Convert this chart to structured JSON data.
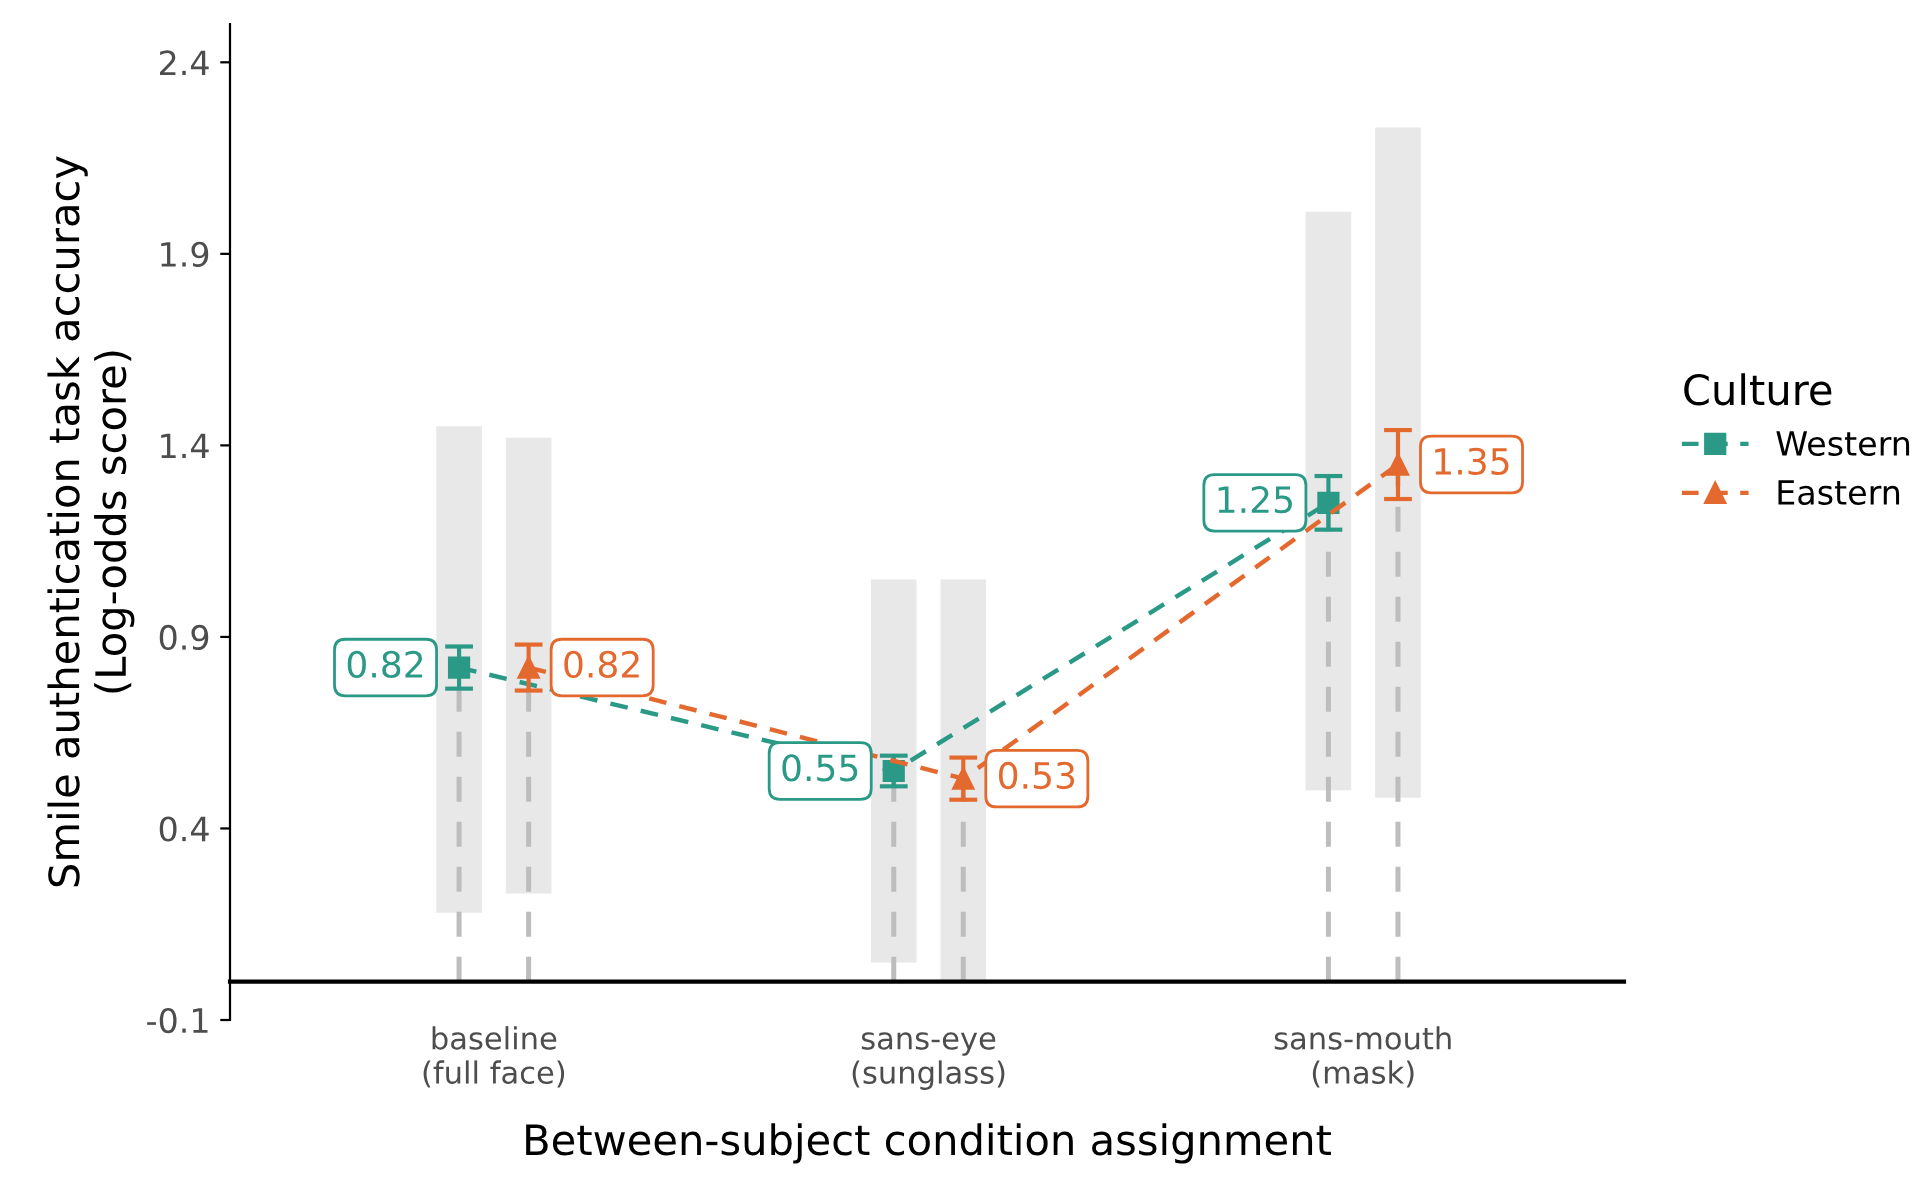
{
  "chart_data": {
    "type": "lollipop",
    "xlabel": "Between-subject condition assignment",
    "ylabel": "Smile authentication task accuracy\n(Log-odds score)",
    "legend_title": "Culture",
    "categories": [
      "baseline\n(full face)",
      "sans-eye\n(sunglass)",
      "sans-mouth\n(mask)"
    ],
    "ylim": [
      -0.1,
      2.5
    ],
    "yticks": [
      -0.1,
      0.4,
      0.9,
      1.4,
      1.9,
      2.4
    ],
    "grid": false,
    "legend": "right",
    "series": [
      {
        "type": "bar",
        "color": "#e8e8e8",
        "base": [
          0.18,
          0.05,
          0.5
        ],
        "values": [
          1.27,
          1.0,
          1.51
        ]
      },
      {
        "type": "bar",
        "color": "#e8e8e8",
        "base": [
          0.23,
          0.0,
          0.48
        ],
        "values": [
          1.19,
          1.05,
          1.75
        ]
      },
      {
        "name": "Western",
        "color": "#2a9a87",
        "line_style": "dashed",
        "marker": "square",
        "values": [
          0.82,
          0.55,
          1.25
        ],
        "errors": [
          0.055,
          0.04,
          0.07
        ],
        "value_labels": [
          "0.82",
          "0.55",
          "1.25"
        ]
      },
      {
        "name": "Eastern",
        "color": "#e4692f",
        "line_style": "dashed",
        "marker": "triangle",
        "values": [
          0.82,
          0.53,
          1.35
        ],
        "errors": [
          0.06,
          0.055,
          0.09
        ],
        "value_labels": [
          "0.82",
          "0.53",
          "1.35"
        ]
      }
    ]
  }
}
